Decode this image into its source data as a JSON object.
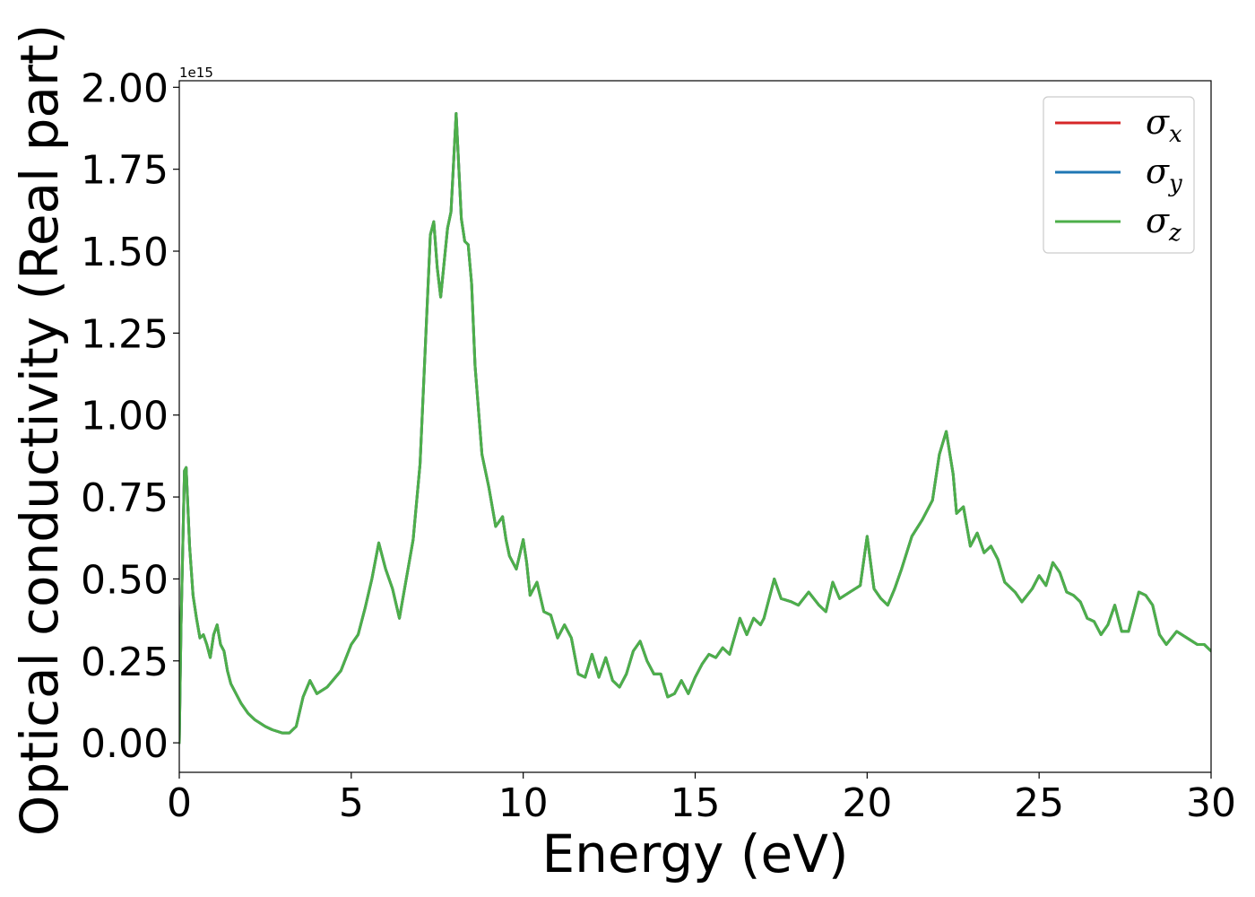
{
  "chart_data": {
    "type": "line",
    "xlabel": "Energy (eV)",
    "ylabel": "Optical conductivity (Real part)",
    "y_offset_label": "1e15",
    "xlim": [
      0,
      30
    ],
    "ylim": [
      -0.09,
      2.02
    ],
    "xticks": [
      0,
      5,
      10,
      15,
      20,
      25,
      30
    ],
    "xtick_labels": [
      "0",
      "5",
      "10",
      "15",
      "20",
      "25",
      "30"
    ],
    "yticks": [
      0.0,
      0.25,
      0.5,
      0.75,
      1.0,
      1.25,
      1.5,
      1.75,
      2.0
    ],
    "ytick_labels": [
      "0.00",
      "0.25",
      "0.50",
      "0.75",
      "1.00",
      "1.25",
      "1.50",
      "1.75",
      "2.00"
    ],
    "grid": false,
    "legend_position": "top-right",
    "series": [
      {
        "name": "σ",
        "subscript": "x",
        "color": "#d62728",
        "values_ref": "shared"
      },
      {
        "name": "σ",
        "subscript": "y",
        "color": "#1f77b4",
        "values_ref": "shared"
      },
      {
        "name": "σ",
        "subscript": "z",
        "color": "#4daf4a",
        "values_ref": "shared"
      }
    ],
    "x": [
      0,
      0.05,
      0.15,
      0.2,
      0.3,
      0.4,
      0.5,
      0.6,
      0.7,
      0.8,
      0.9,
      1.0,
      1.1,
      1.2,
      1.3,
      1.4,
      1.5,
      1.6,
      1.8,
      2.0,
      2.2,
      2.5,
      2.7,
      3.0,
      3.2,
      3.4,
      3.6,
      3.8,
      4.0,
      4.3,
      4.7,
      5.0,
      5.2,
      5.4,
      5.6,
      5.8,
      6.0,
      6.2,
      6.4,
      6.6,
      6.8,
      7.0,
      7.15,
      7.3,
      7.4,
      7.5,
      7.6,
      7.8,
      7.9,
      8.05,
      8.2,
      8.3,
      8.4,
      8.5,
      8.6,
      8.8,
      9.0,
      9.2,
      9.4,
      9.5,
      9.6,
      9.8,
      10.0,
      10.1,
      10.2,
      10.4,
      10.6,
      10.8,
      11.0,
      11.2,
      11.4,
      11.6,
      11.8,
      12.0,
      12.2,
      12.4,
      12.6,
      12.8,
      13.0,
      13.2,
      13.4,
      13.6,
      13.8,
      14.0,
      14.2,
      14.4,
      14.6,
      14.8,
      15.0,
      15.2,
      15.4,
      15.6,
      15.8,
      16.0,
      16.3,
      16.5,
      16.7,
      16.9,
      17.0,
      17.3,
      17.5,
      17.8,
      18.0,
      18.3,
      18.6,
      18.8,
      19.0,
      19.2,
      19.5,
      19.8,
      20.0,
      20.2,
      20.4,
      20.6,
      20.8,
      21.0,
      21.3,
      21.6,
      21.9,
      22.1,
      22.3,
      22.5,
      22.6,
      22.8,
      23.0,
      23.2,
      23.4,
      23.6,
      23.8,
      24.0,
      24.3,
      24.5,
      24.8,
      25.0,
      25.2,
      25.4,
      25.6,
      25.8,
      26.0,
      26.2,
      26.4,
      26.6,
      26.8,
      27.0,
      27.2,
      27.4,
      27.6,
      27.9,
      28.1,
      28.3,
      28.5,
      28.7,
      29.0,
      29.3,
      29.6,
      29.8,
      30.0
    ],
    "values": [
      0.0,
      0.35,
      0.83,
      0.84,
      0.6,
      0.45,
      0.38,
      0.32,
      0.33,
      0.3,
      0.26,
      0.33,
      0.36,
      0.3,
      0.28,
      0.22,
      0.18,
      0.16,
      0.12,
      0.09,
      0.07,
      0.05,
      0.04,
      0.03,
      0.03,
      0.05,
      0.14,
      0.19,
      0.15,
      0.17,
      0.22,
      0.3,
      0.33,
      0.41,
      0.5,
      0.61,
      0.53,
      0.47,
      0.38,
      0.5,
      0.62,
      0.85,
      1.2,
      1.55,
      1.59,
      1.45,
      1.36,
      1.57,
      1.62,
      1.92,
      1.6,
      1.53,
      1.52,
      1.4,
      1.15,
      0.88,
      0.78,
      0.66,
      0.69,
      0.62,
      0.57,
      0.53,
      0.62,
      0.55,
      0.45,
      0.49,
      0.4,
      0.39,
      0.32,
      0.36,
      0.32,
      0.21,
      0.2,
      0.27,
      0.2,
      0.26,
      0.19,
      0.17,
      0.21,
      0.28,
      0.31,
      0.25,
      0.21,
      0.21,
      0.14,
      0.15,
      0.19,
      0.15,
      0.2,
      0.24,
      0.27,
      0.26,
      0.29,
      0.27,
      0.38,
      0.33,
      0.38,
      0.36,
      0.38,
      0.5,
      0.44,
      0.43,
      0.42,
      0.46,
      0.42,
      0.4,
      0.49,
      0.44,
      0.46,
      0.48,
      0.63,
      0.47,
      0.44,
      0.42,
      0.47,
      0.53,
      0.63,
      0.68,
      0.74,
      0.88,
      0.95,
      0.82,
      0.7,
      0.72,
      0.6,
      0.64,
      0.58,
      0.6,
      0.56,
      0.49,
      0.46,
      0.43,
      0.47,
      0.51,
      0.48,
      0.55,
      0.52,
      0.46,
      0.45,
      0.43,
      0.38,
      0.37,
      0.33,
      0.36,
      0.42,
      0.34,
      0.34,
      0.46,
      0.45,
      0.42,
      0.33,
      0.3,
      0.34,
      0.32,
      0.3,
      0.3,
      0.28
    ]
  }
}
